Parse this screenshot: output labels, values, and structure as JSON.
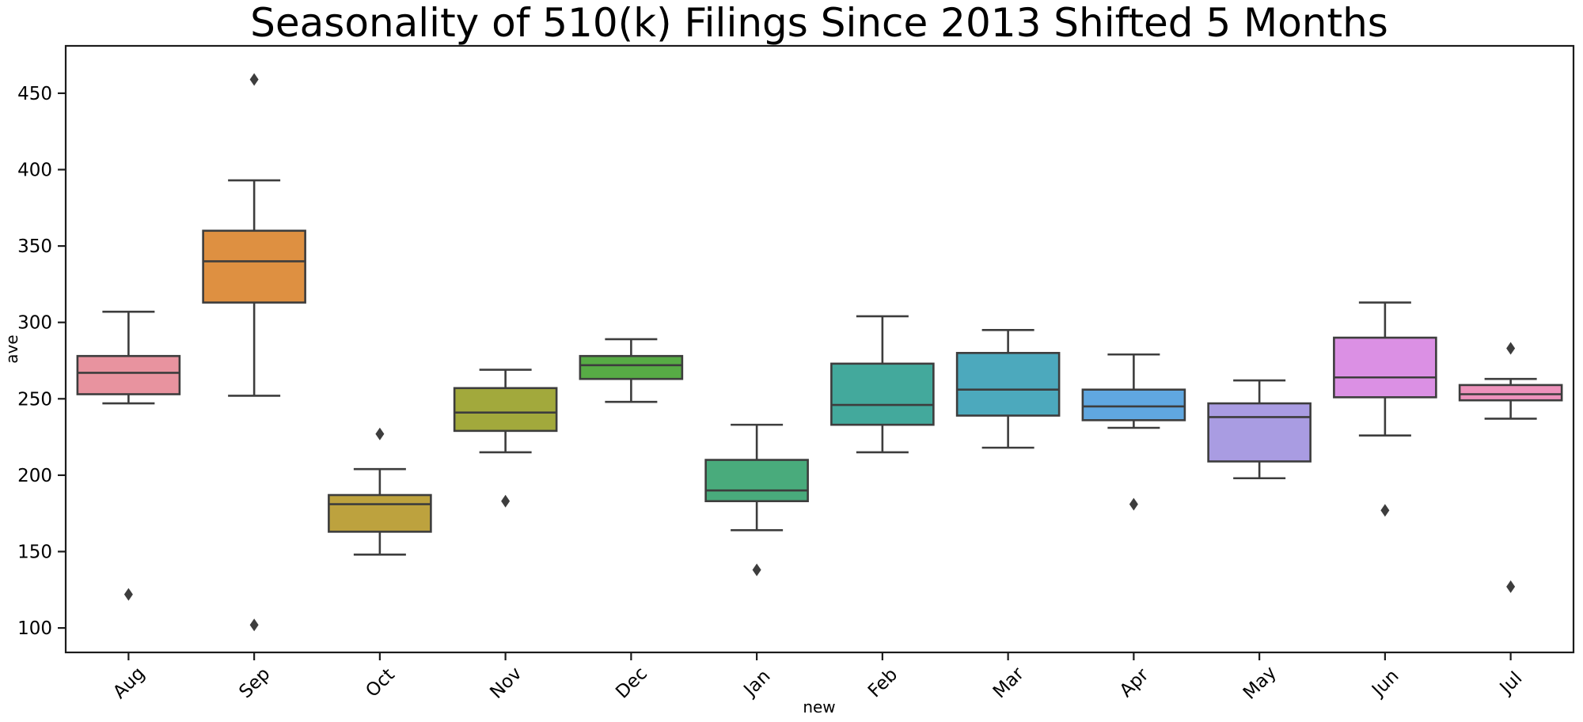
{
  "page": {
    "title": "Seasonality of 510(k) Filings Since 2013 Shifted 5 Months"
  },
  "chart_data": {
    "type": "box",
    "title": "Seasonality of 510(k) Filings Since 2013 Shifted 5 Months",
    "xlabel": "new",
    "ylabel": "ave",
    "categories": [
      "Aug",
      "Sep",
      "Oct",
      "Nov",
      "Dec",
      "Jan",
      "Feb",
      "Mar",
      "Apr",
      "May",
      "Jun",
      "Jul"
    ],
    "y_ticks": [
      100,
      150,
      200,
      250,
      300,
      350,
      400,
      450
    ],
    "ylim": [
      84,
      481
    ],
    "grid": false,
    "legend": "none",
    "x_tick_rotation_deg": 45,
    "boxes": [
      {
        "category": "Aug",
        "whisker_low": 247,
        "q1": 253,
        "median": 267,
        "q3": 278,
        "whisker_high": 307,
        "outliers": [
          122
        ],
        "color": "#e8939f"
      },
      {
        "category": "Sep",
        "whisker_low": 252,
        "q1": 313,
        "median": 340,
        "q3": 360,
        "whisker_high": 393,
        "outliers": [
          459,
          102
        ],
        "color": "#de9041"
      },
      {
        "category": "Oct",
        "whisker_low": 148,
        "q1": 163,
        "median": 181,
        "q3": 187,
        "whisker_high": 204,
        "outliers": [
          227
        ],
        "color": "#bda23e"
      },
      {
        "category": "Nov",
        "whisker_low": 215,
        "q1": 229,
        "median": 241,
        "q3": 257,
        "whisker_high": 269,
        "outliers": [
          183
        ],
        "color": "#a2a93c"
      },
      {
        "category": "Dec",
        "whisker_low": 248,
        "q1": 263,
        "median": 272,
        "q3": 278,
        "whisker_high": 289,
        "outliers": [],
        "color": "#57ab45"
      },
      {
        "category": "Jan",
        "whisker_low": 164,
        "q1": 183,
        "median": 190,
        "q3": 210,
        "whisker_high": 233,
        "outliers": [
          138
        ],
        "color": "#49ab7c"
      },
      {
        "category": "Feb",
        "whisker_low": 215,
        "q1": 233,
        "median": 246,
        "q3": 273,
        "whisker_high": 304,
        "outliers": [],
        "color": "#43a99c"
      },
      {
        "category": "Mar",
        "whisker_low": 218,
        "q1": 239,
        "median": 256,
        "q3": 280,
        "whisker_high": 295,
        "outliers": [],
        "color": "#4ca9bd"
      },
      {
        "category": "Apr",
        "whisker_low": 231,
        "q1": 236,
        "median": 245,
        "q3": 256,
        "whisker_high": 279,
        "outliers": [
          181
        ],
        "color": "#60a7e0"
      },
      {
        "category": "May",
        "whisker_low": 198,
        "q1": 209,
        "median": 238,
        "q3": 247,
        "whisker_high": 262,
        "outliers": [],
        "color": "#a99ce2"
      },
      {
        "category": "Jun",
        "whisker_low": 226,
        "q1": 251,
        "median": 264,
        "q3": 290,
        "whisker_high": 313,
        "outliers": [
          177
        ],
        "color": "#db90e4"
      },
      {
        "category": "Jul",
        "whisker_low": 237,
        "q1": 249,
        "median": 253,
        "q3": 259,
        "whisker_high": 263,
        "outliers": [
          283,
          127
        ],
        "color": "#ed92bb"
      }
    ],
    "styles": {
      "edge_color": "#3d3d3d",
      "outlier_color": "#3d3d3d",
      "spine_color": "#1c1c1c",
      "text_color": "#000000",
      "background": "#ffffff"
    }
  }
}
